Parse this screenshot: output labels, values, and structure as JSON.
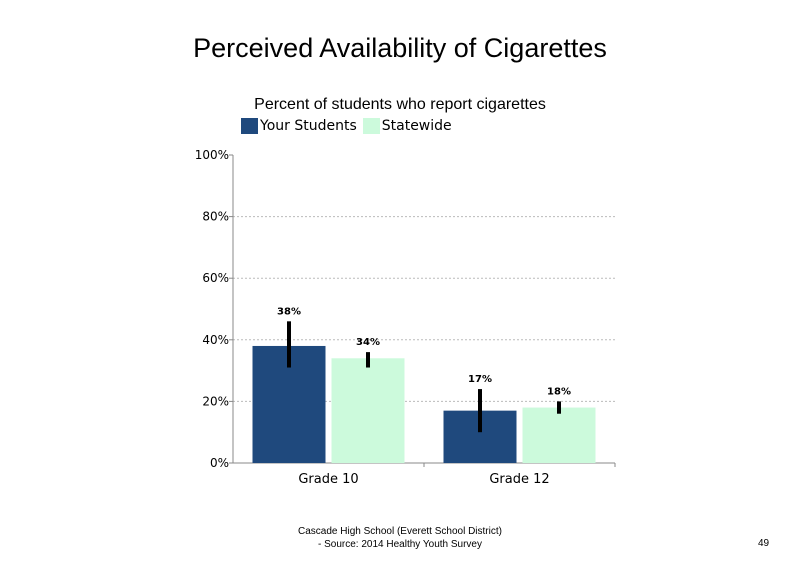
{
  "slide": {
    "footer_line1": "Cascade High School (Everett School District)",
    "footer_line2": "- Source: 2014 Healthy  Youth Survey",
    "page_number": "49"
  },
  "chart_data": {
    "type": "bar",
    "title": "Perceived Availability of Cigarettes",
    "subtitle": "Percent of students who report cigarettes",
    "categories": [
      "Grade 10",
      "Grade 12"
    ],
    "series": [
      {
        "name": "Your Students",
        "color": "#1f497d",
        "values": [
          38,
          17
        ],
        "labels": [
          "38%",
          "17%"
        ],
        "error_low": [
          31,
          10
        ],
        "error_high": [
          46,
          24
        ]
      },
      {
        "name": "Statewide",
        "color": "#ccfadc",
        "values": [
          34,
          18
        ],
        "labels": [
          "34%",
          "18%"
        ],
        "error_low": [
          31,
          16
        ],
        "error_high": [
          36,
          20
        ]
      }
    ],
    "ylim": [
      0,
      100
    ],
    "yticks": [
      0,
      20,
      40,
      60,
      80,
      100
    ],
    "ytick_labels": [
      "0%",
      "20%",
      "40%",
      "60%",
      "80%",
      "100%"
    ],
    "grid": true,
    "legend": "top-left"
  }
}
